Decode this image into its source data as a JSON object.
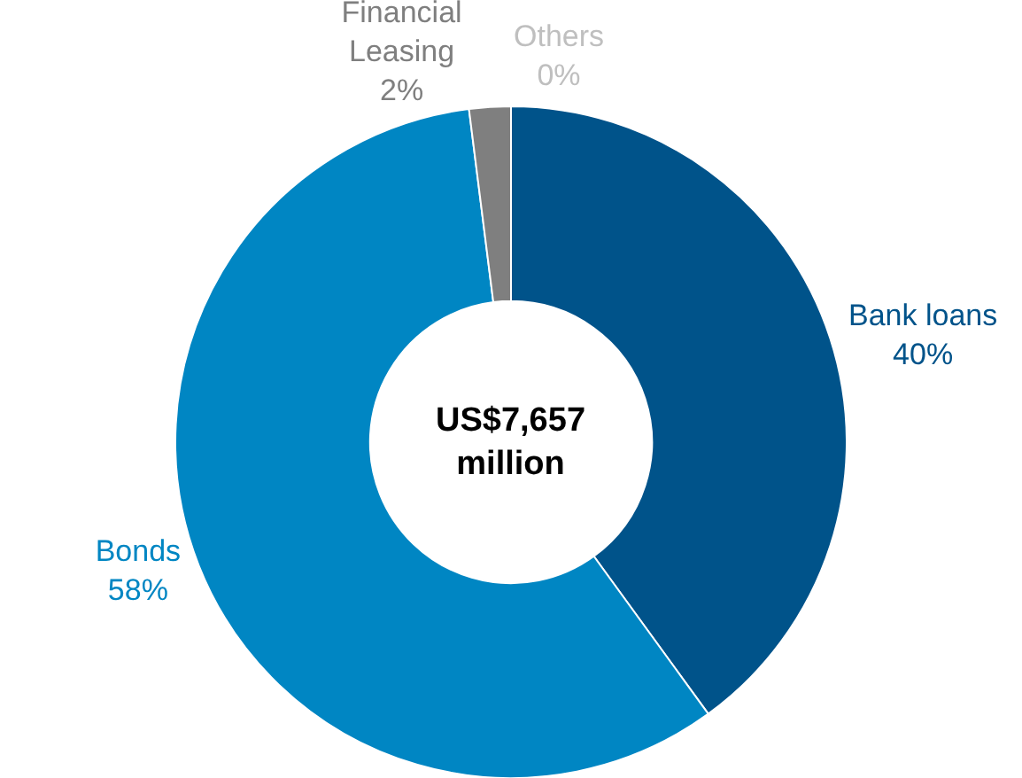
{
  "chart_data": {
    "type": "donut",
    "categories": [
      "Bank loans",
      "Bonds",
      "Financial Leasing",
      "Others"
    ],
    "values": [
      40,
      58,
      2,
      0
    ],
    "value_labels": [
      "40%",
      "58%",
      "2%",
      "0%"
    ],
    "colors": [
      "#00538a",
      "#0086c3",
      "#7f7f7f",
      "#bfbfbf"
    ],
    "annotations": [
      "US$7,657 million"
    ],
    "legend": false
  }
}
